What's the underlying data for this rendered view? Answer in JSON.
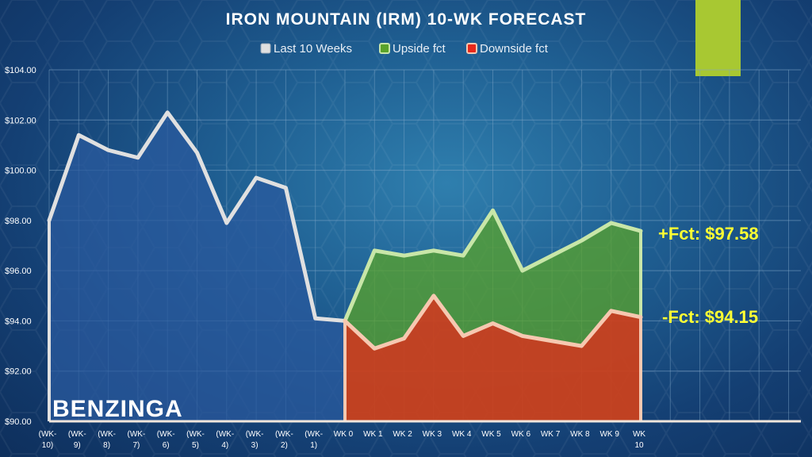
{
  "chart_data": {
    "type": "area",
    "title": "IRON MOUNTAIN (IRM) 10-WK FORECAST",
    "ylim": [
      90,
      104
    ],
    "y_ticks": [
      "$90.00",
      "$92.00",
      "$94.00",
      "$96.00",
      "$98.00",
      "$100.00",
      "$102.00",
      "$104.00"
    ],
    "y_tick_values": [
      90,
      92,
      94,
      96,
      98,
      100,
      102,
      104
    ],
    "categories": [
      [
        "(WK-",
        "10)"
      ],
      [
        "(WK-",
        "9)"
      ],
      [
        "(WK-",
        "8)"
      ],
      [
        "(WK-",
        "7)"
      ],
      [
        "(WK-",
        "6)"
      ],
      [
        "(WK-",
        "5)"
      ],
      [
        "(WK-",
        "4)"
      ],
      [
        "(WK-",
        "3)"
      ],
      [
        "(WK-",
        "2)"
      ],
      [
        "(WK-",
        "1)"
      ],
      [
        "WK 0"
      ],
      [
        "WK 1"
      ],
      [
        "WK 2"
      ],
      [
        "WK 3"
      ],
      [
        "WK 4"
      ],
      [
        "WK 5"
      ],
      [
        "WK 6"
      ],
      [
        "WK 7"
      ],
      [
        "WK 8"
      ],
      [
        "WK 9"
      ],
      [
        "WK",
        "10"
      ]
    ],
    "series": [
      {
        "name": "Last 10 Weeks",
        "color": "#e0e0e0",
        "fill": "#2a5a9e",
        "values": [
          98.0,
          101.4,
          100.8,
          100.5,
          102.3,
          100.7,
          97.9,
          99.7,
          99.3,
          94.1,
          94.0,
          null,
          null,
          null,
          null,
          null,
          null,
          null,
          null,
          null,
          null
        ]
      },
      {
        "name": "Upside fct",
        "color": "#c8e6a8",
        "fill": "#5aa32a",
        "values": [
          null,
          null,
          null,
          null,
          null,
          null,
          null,
          null,
          null,
          null,
          94.0,
          96.8,
          96.6,
          96.8,
          96.6,
          98.4,
          96.0,
          96.6,
          97.2,
          97.9,
          97.58
        ]
      },
      {
        "name": "Downside fct",
        "color": "#f6c8b0",
        "fill": "#e8281a",
        "values": [
          null,
          null,
          null,
          null,
          null,
          null,
          null,
          null,
          null,
          null,
          94.0,
          92.9,
          93.3,
          95.0,
          93.4,
          93.9,
          93.4,
          93.2,
          93.0,
          94.4,
          94.15
        ]
      }
    ],
    "annotations": [
      "+Fct: $97.58",
      "-Fct: $94.15"
    ],
    "legend_position": "top",
    "grid": true
  },
  "brand": "BENZINGA",
  "colors": {
    "accent_block": "#a8c832",
    "grid": "#7fa6c8"
  }
}
